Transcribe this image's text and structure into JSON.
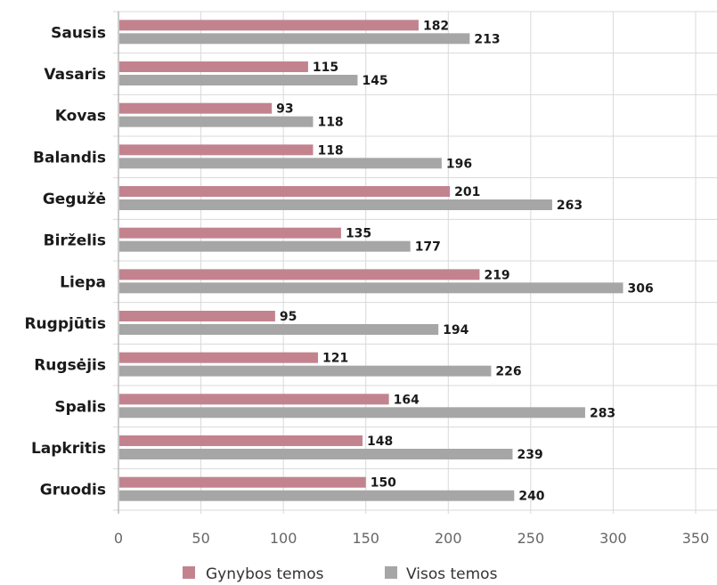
{
  "chart_data": {
    "type": "bar",
    "orientation": "horizontal",
    "categories": [
      "Sausis",
      "Vasaris",
      "Kovas",
      "Balandis",
      "Gegužė",
      "Birželis",
      "Liepa",
      "Rugpjūtis",
      "Rugsėjis",
      "Spalis",
      "Lapkritis",
      "Gruodis"
    ],
    "series": [
      {
        "name": "Gynybos temos",
        "color": "#c2838f",
        "values": [
          182,
          115,
          93,
          118,
          201,
          135,
          219,
          95,
          121,
          164,
          148,
          150
        ]
      },
      {
        "name": "Visos temos",
        "color": "#a6a6a6",
        "values": [
          213,
          145,
          118,
          196,
          263,
          177,
          306,
          194,
          226,
          283,
          239,
          240
        ]
      }
    ],
    "xlim": [
      0,
      350
    ],
    "xticks": [
      0,
      50,
      100,
      150,
      200,
      250,
      300,
      350
    ],
    "grid": true,
    "legend_position": "bottom"
  }
}
